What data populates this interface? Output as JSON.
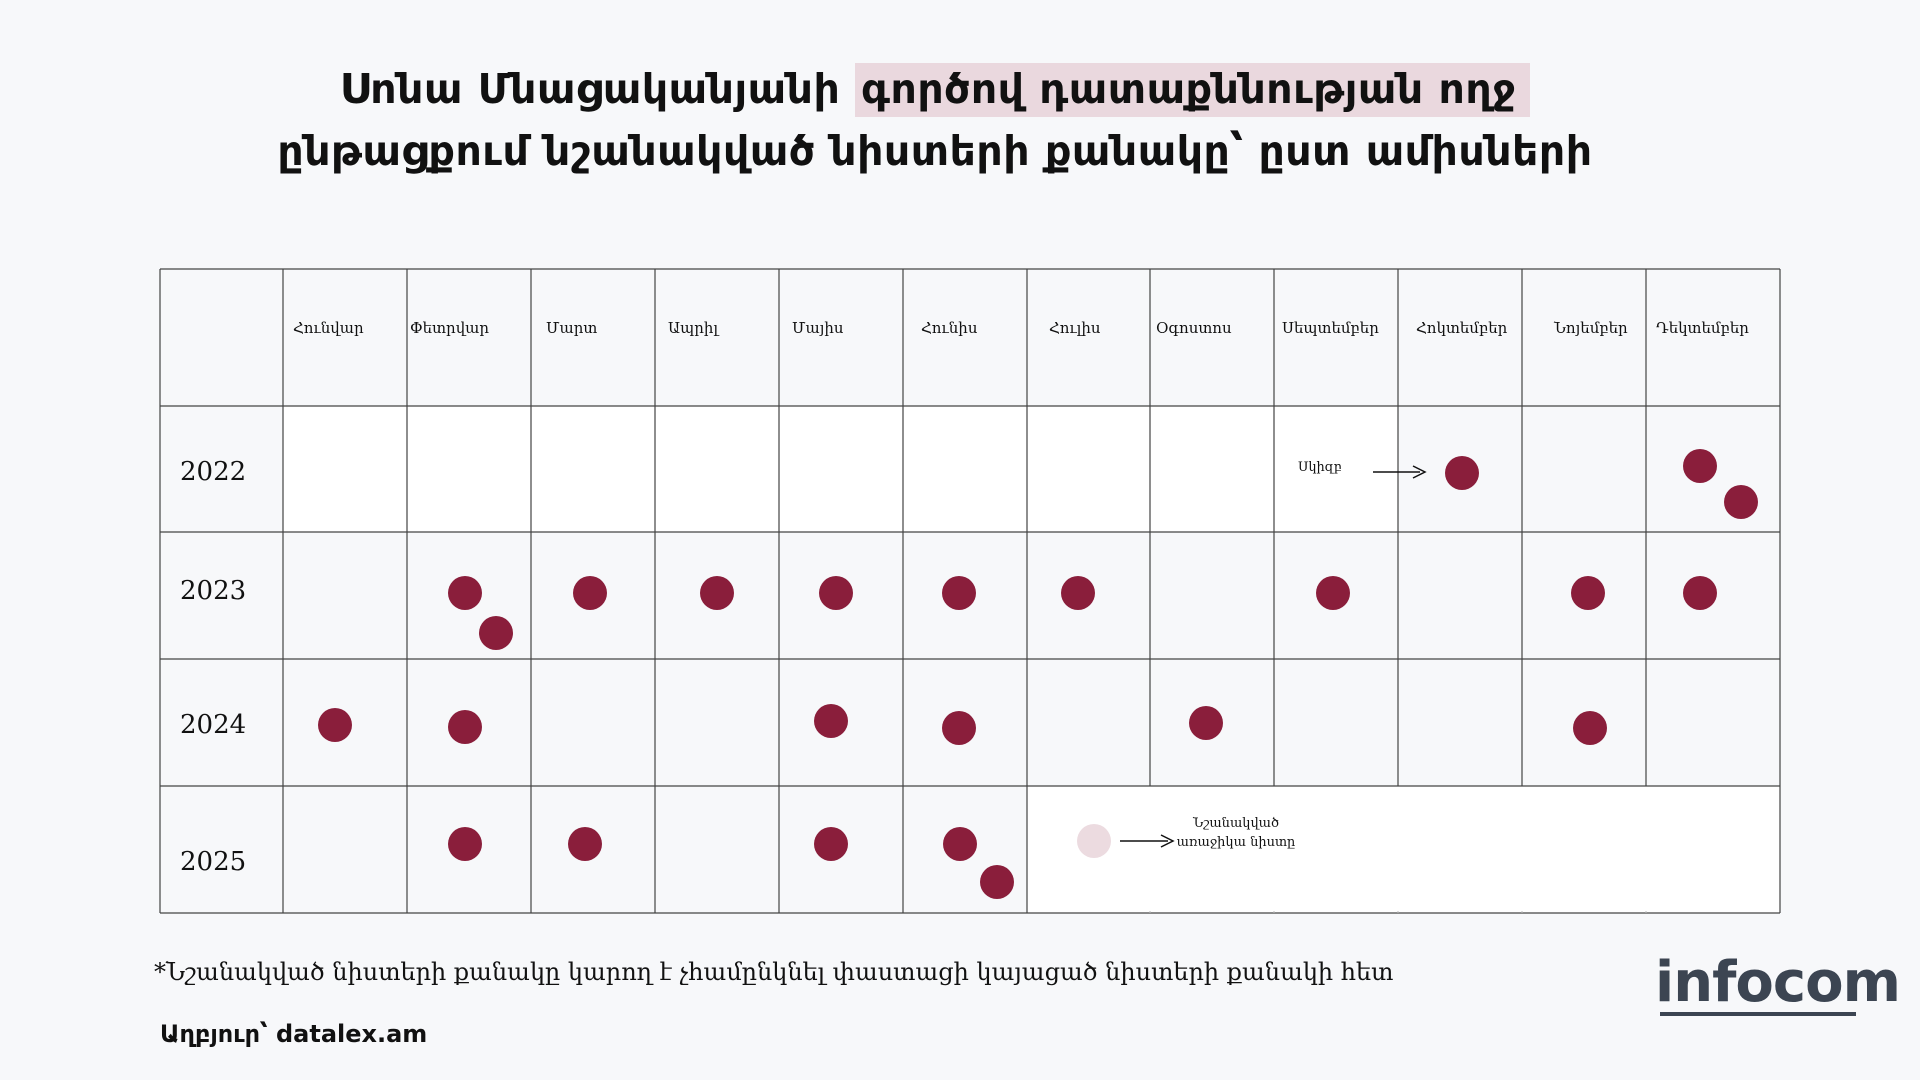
{
  "title": {
    "line1_plain": "Սոնա Մնացականյանի ",
    "line1_highlight": "գործով դատաքննության ողջ",
    "line2": "ընթացքում նշանակված նիստերի քանակը՝ ըստ ամիսների"
  },
  "colors": {
    "dot": "#8a1e3b",
    "next_dot": "#ecdbe0",
    "highlight": "#ead8de",
    "grid_line": "#444444",
    "cell_white": "#ffffff",
    "cell_gray": "#f7f8fa"
  },
  "footnote": "*Նշանակված նիստերի քանակը կարող է չհամընկնել փաստացի կայացած նիստերի քանակի հետ",
  "source": "Աղբյուր՝ datalex.am",
  "logo": "infocom",
  "chart_data": {
    "type": "table",
    "months": [
      "Հունվար",
      "Փետրվար",
      "Մարտ",
      "Ապրիլ",
      "Մայիս",
      "Հունիս",
      "Հուլիս",
      "Օգոստոս",
      "Սեպտեմբեր",
      "Հոկտեմբեր",
      "Նոյեմբեր",
      "Դեկտեմբեր"
    ],
    "years": [
      "2022",
      "2023",
      "2024",
      "2025"
    ],
    "series": [
      {
        "year": "2022",
        "values": [
          0,
          0,
          0,
          0,
          0,
          0,
          0,
          0,
          0,
          1,
          0,
          2
        ]
      },
      {
        "year": "2023",
        "values": [
          0,
          2,
          1,
          1,
          1,
          1,
          1,
          0,
          1,
          0,
          1,
          1
        ]
      },
      {
        "year": "2024",
        "values": [
          1,
          1,
          0,
          0,
          1,
          1,
          0,
          1,
          0,
          0,
          1,
          0
        ]
      },
      {
        "year": "2025",
        "values": [
          0,
          1,
          1,
          0,
          1,
          2,
          0,
          0,
          0,
          0,
          0,
          0
        ]
      }
    ],
    "annotations": {
      "start_label": "Սկիզբ",
      "next_session_line1": "Նշանակված",
      "next_session_line2": "առաջիկա նիստը"
    }
  }
}
